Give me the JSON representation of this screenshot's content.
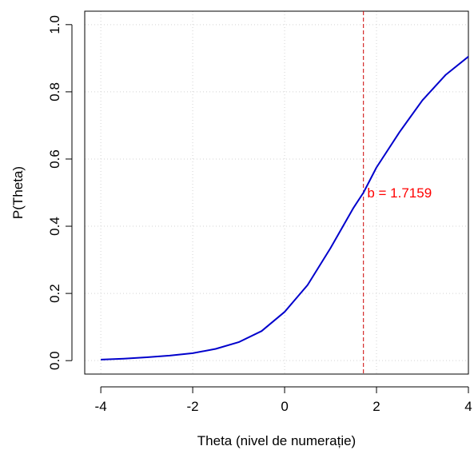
{
  "chart_data": {
    "type": "line",
    "title": "",
    "xlabel": "Theta (nivel de numerație)",
    "ylabel": "P(Theta)",
    "xlim": [
      -4.35,
      4.0
    ],
    "ylim": [
      -0.04,
      1.04
    ],
    "x_ticks": [
      -4,
      -2,
      0,
      2,
      4
    ],
    "x_tick_labels": [
      "-4",
      "-2",
      "0",
      "2",
      "4"
    ],
    "y_ticks": [
      0.0,
      0.2,
      0.4,
      0.6,
      0.8,
      1.0
    ],
    "y_tick_labels": [
      "0.0",
      "0.2",
      "0.4",
      "0.6",
      "0.8",
      "1.0"
    ],
    "grid": true,
    "series": [
      {
        "color": "#0000cc",
        "x": [
          -4,
          -3.5,
          -3,
          -2.5,
          -2,
          -1.5,
          -1,
          -0.5,
          0,
          0.5,
          1,
          1.5,
          1.7159,
          2,
          2.5,
          3,
          3.5,
          4
        ],
        "y": [
          0.003,
          0.006,
          0.01,
          0.015,
          0.022,
          0.035,
          0.055,
          0.088,
          0.145,
          0.225,
          0.335,
          0.455,
          0.5,
          0.575,
          0.68,
          0.775,
          0.85,
          0.905
        ]
      }
    ],
    "vline": {
      "x": 1.7159,
      "color": "#cc0000",
      "style": "dashed"
    },
    "annotation": {
      "text": "b = 1.7159",
      "x": 2.5,
      "y": 0.5,
      "color": "#ff0000"
    }
  }
}
